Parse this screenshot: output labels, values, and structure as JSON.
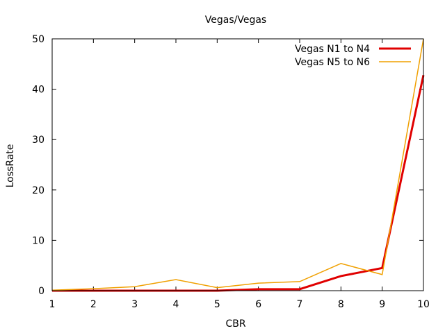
{
  "chart_data": {
    "type": "line",
    "title": "Vegas/Vegas",
    "xlabel": "CBR",
    "ylabel": "LossRate",
    "xlim": [
      1,
      10
    ],
    "ylim": [
      0,
      50
    ],
    "x_ticks": [
      1,
      2,
      3,
      4,
      5,
      6,
      7,
      8,
      9,
      10
    ],
    "y_ticks": [
      0,
      10,
      20,
      30,
      40,
      50
    ],
    "grid": false,
    "legend_position": "top-right",
    "x": [
      1,
      2,
      3,
      4,
      5,
      6,
      7,
      8,
      9,
      10
    ],
    "series": [
      {
        "name": "Vegas N1 to N4",
        "color": "#e00000",
        "values": [
          0,
          0,
          0,
          0,
          0,
          0.3,
          0.3,
          2.9,
          4.5,
          42.8
        ]
      },
      {
        "name": "Vegas N5 to N6",
        "color": "#f0a000",
        "values": [
          0.1,
          0.4,
          0.8,
          2.2,
          0.6,
          1.5,
          1.8,
          5.4,
          3.2,
          50
        ]
      }
    ]
  }
}
